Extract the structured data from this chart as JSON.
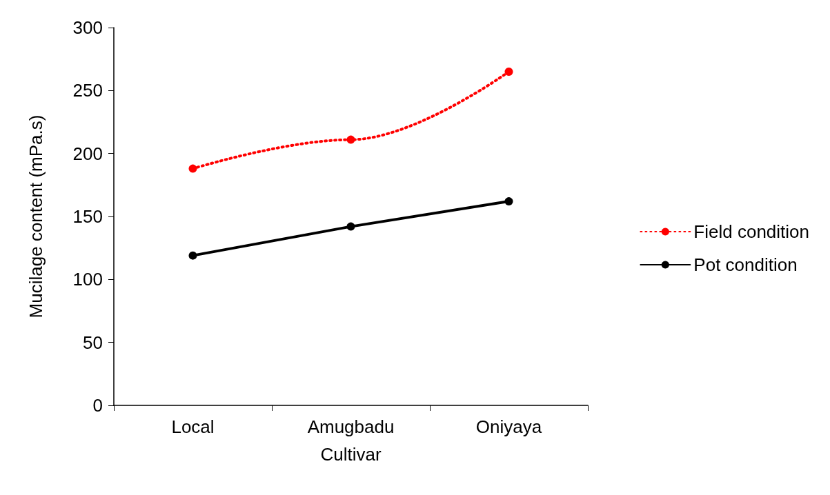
{
  "chart_data": {
    "type": "line",
    "xlabel": "Cultivar",
    "ylabel": "Mucilage content (mPa.s)",
    "categories": [
      "Local",
      "Amugbadu",
      "Oniyaya"
    ],
    "series": [
      {
        "name": "Field condition",
        "color": "#ff0000",
        "values": [
          188,
          211,
          265
        ],
        "line_style": "dotted"
      },
      {
        "name": "Pot condition",
        "color": "#000000",
        "values": [
          119,
          142,
          162
        ],
        "line_style": "solid"
      }
    ],
    "ylim": [
      0,
      300
    ],
    "yticks": [
      0,
      50,
      100,
      150,
      200,
      250,
      300
    ],
    "grid": false,
    "legend": "right",
    "marker": "circle"
  }
}
